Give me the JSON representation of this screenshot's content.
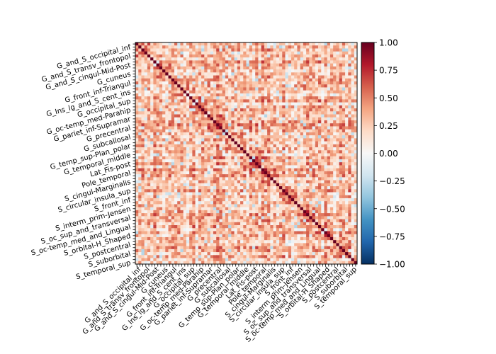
{
  "chart_data": {
    "type": "heatmap",
    "title": "",
    "xlabel": "",
    "ylabel": "",
    "value_range": [
      -1,
      1
    ],
    "colormap": "RdBu_r",
    "matrix_size": 74,
    "tick_labels": [
      "G_and_S_occipital_inf",
      "G_and_S_transv_frontopol",
      "G_and_S_cingul-Mid-Post",
      "G_cuneus",
      "G_front_inf-Triangul",
      "G_Ins_lg_and_S_cent_ins",
      "G_occipital_sup",
      "G_oc-temp_med-Parahip",
      "G_pariet_inf-Supramar",
      "G_precentral",
      "G_subcallosal",
      "G_temp_sup-Plan_polar",
      "G_temporal_middle",
      "Lat_Fis-post",
      "Pole_temporal",
      "S_cingul-Marginalis",
      "S_circular_insula_sup",
      "S_front_inf",
      "S_interm_prim-Jensen",
      "S_oc_sup_and_transversal",
      "S_oc-temp_med_and_Lingual",
      "S_orbital-H_Shaped",
      "S_postcentral",
      "S_suborbital",
      "S_temporal_sup"
    ],
    "tick_positions": [
      1,
      4,
      7,
      10,
      13,
      16,
      19,
      22,
      25,
      28,
      31,
      34,
      37,
      40,
      43,
      46,
      49,
      52,
      55,
      58,
      61,
      64,
      67,
      70,
      73
    ],
    "colorbar": {
      "ticks": [
        1.0,
        0.75,
        0.5,
        0.25,
        0.0,
        -0.25,
        -0.5,
        -0.75,
        -1.0
      ],
      "tick_labels": [
        "1.00",
        "0.75",
        "0.50",
        "0.25",
        "0.00",
        "−0.25",
        "−0.50",
        "−0.75",
        "−1.00"
      ]
    },
    "diagonal_value": 1.0,
    "typical_offdiag_range": [
      -0.3,
      0.85
    ]
  }
}
